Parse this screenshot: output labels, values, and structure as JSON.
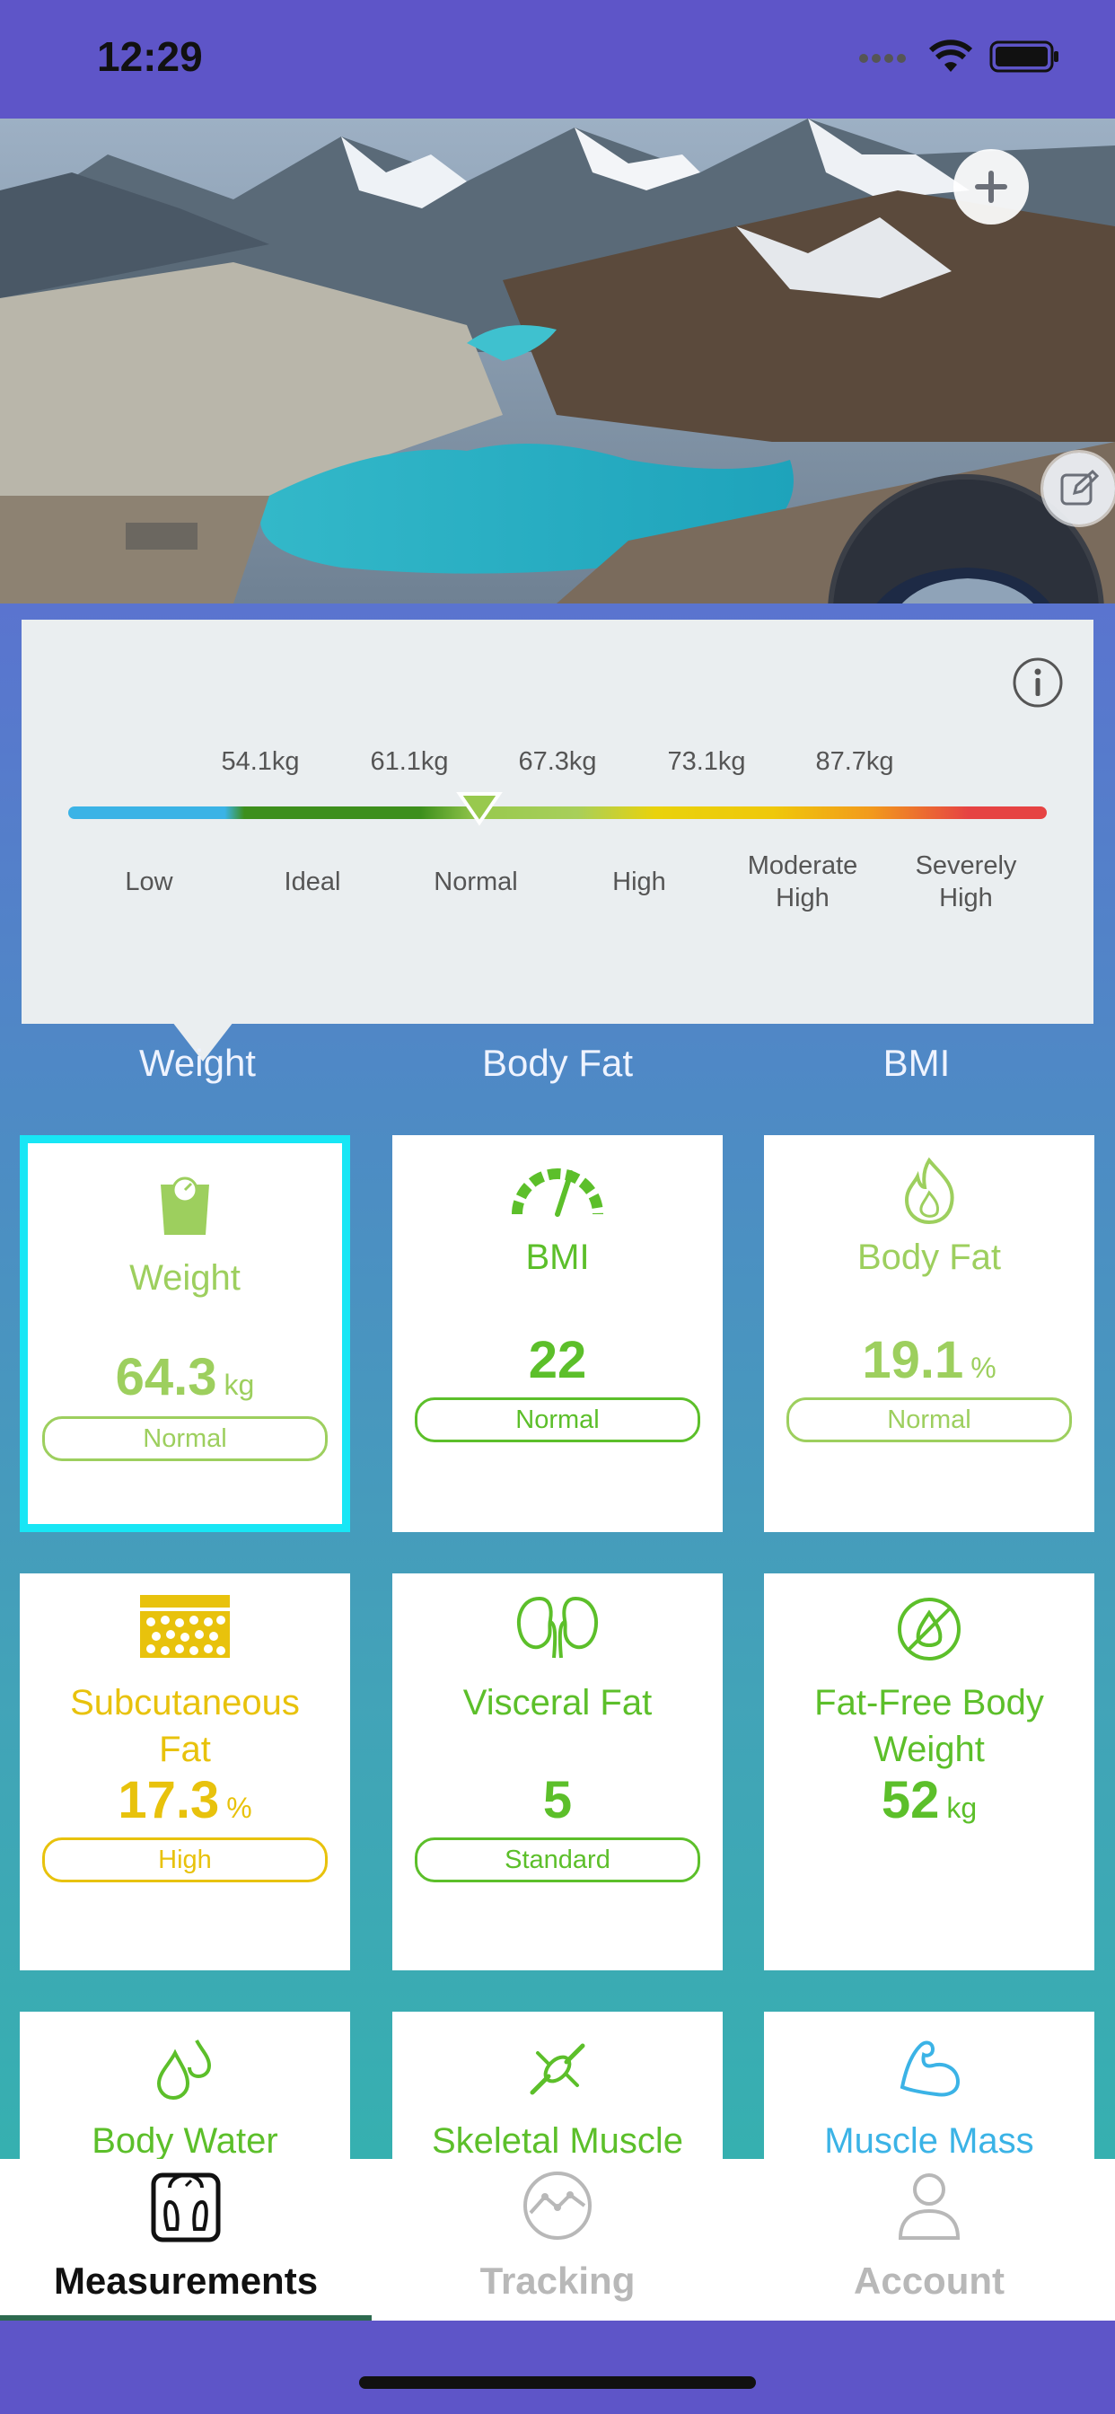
{
  "status_bar": {
    "time": "12:29"
  },
  "scale_popup": {
    "values": [
      "54.1kg",
      "61.1kg",
      "67.3kg",
      "73.1kg",
      "87.7kg"
    ],
    "labels": [
      "Low",
      "Ideal",
      "Normal",
      "High",
      "Moderate\nHigh",
      "Severely\nHigh"
    ],
    "indicator_category": "Normal"
  },
  "metric_tabs": [
    "Weight",
    "Body Fat",
    "BMI"
  ],
  "cards": [
    {
      "title": "Weight",
      "value": "64.3",
      "unit": "kg",
      "status": "Normal",
      "color": "#9dcf5e",
      "icon": "scale-icon",
      "selected": true
    },
    {
      "title": "BMI",
      "value": "22",
      "unit": "",
      "status": "Normal",
      "color": "#5cbf2a",
      "icon": "gauge-icon"
    },
    {
      "title": "Body Fat",
      "value": "19.1",
      "unit": "%",
      "status": "Normal",
      "color": "#9dcf5e",
      "icon": "flame-icon"
    },
    {
      "title": "Subcutaneous\nFat",
      "value": "17.3",
      "unit": "%",
      "status": "High",
      "color": "#e8c20c",
      "icon": "fat-cells-icon"
    },
    {
      "title": "Visceral Fat",
      "value": "5",
      "unit": "",
      "status": "Standard",
      "color": "#5cbf2a",
      "icon": "kidneys-icon"
    },
    {
      "title": "Fat-Free Body\nWeight",
      "value": "52",
      "unit": "kg",
      "status": "",
      "color": "#5cbf2a",
      "icon": "no-fat-icon"
    },
    {
      "title": "Body Water",
      "value": "",
      "unit": "",
      "status": "",
      "color": "#5cbf2a",
      "icon": "water-drops-icon"
    },
    {
      "title": "Skeletal Muscle",
      "value": "",
      "unit": "",
      "status": "",
      "color": "#5cbf2a",
      "icon": "bone-icon"
    },
    {
      "title": "Muscle Mass",
      "value": "",
      "unit": "",
      "status": "",
      "color": "#3bb3e6",
      "icon": "biceps-icon"
    }
  ],
  "bottom_nav": {
    "items": [
      {
        "label": "Measurements",
        "active": true
      },
      {
        "label": "Tracking",
        "active": false
      },
      {
        "label": "Account",
        "active": false
      }
    ]
  }
}
